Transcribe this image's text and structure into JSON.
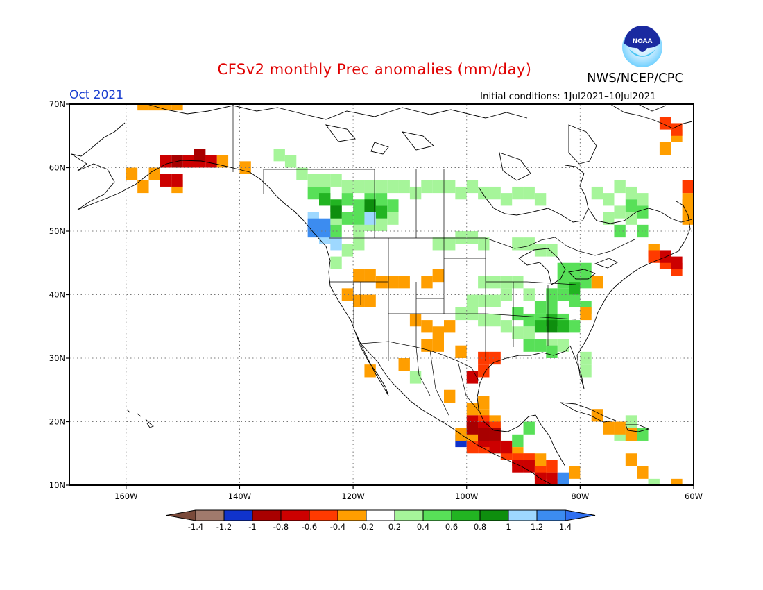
{
  "header": {
    "title": "CFSv2 monthly Prec anomalies (mm/day)",
    "agency": "NWS/NCEP/CPC",
    "logo_text": "NOAA",
    "month": "Oct 2021",
    "initial_conditions": "Initial conditions: 1Jul2021–10Jul2021"
  },
  "map": {
    "projection": "lat-lon",
    "lon_range": [
      -170,
      -60
    ],
    "lat_range": [
      10,
      70
    ],
    "lon_ticks": [
      {
        "lon": -160,
        "label": "160W"
      },
      {
        "lon": -140,
        "label": "140W"
      },
      {
        "lon": -120,
        "label": "120W"
      },
      {
        "lon": -100,
        "label": "100W"
      },
      {
        "lon": -80,
        "label": "80W"
      },
      {
        "lon": -60,
        "label": "60W"
      }
    ],
    "lat_ticks": [
      {
        "lat": 70,
        "label": "70N"
      },
      {
        "lat": 60,
        "label": "60N"
      },
      {
        "lat": 50,
        "label": "50N"
      },
      {
        "lat": 40,
        "label": "40N"
      },
      {
        "lat": 30,
        "label": "30N"
      },
      {
        "lat": 20,
        "label": "20N"
      },
      {
        "lat": 10,
        "label": "10N"
      }
    ],
    "grid": "dotted"
  },
  "colorbar": {
    "labels": [
      "-1.4",
      "-1.2",
      "-1",
      "-0.8",
      "-0.6",
      "-0.4",
      "-0.2",
      "0.2",
      "0.4",
      "0.6",
      "0.8",
      "1",
      "1.2",
      "1.4"
    ],
    "colors": [
      "#a07a6c",
      "#1033cc",
      "#a80000",
      "#cc0000",
      "#ff3a00",
      "#ff9e00",
      "#ffffff",
      "#a6f59a",
      "#58e058",
      "#22b422",
      "#0e8e0e",
      "#9ed8ff",
      "#3c8cf0"
    ],
    "under_color": "#7a4a3a",
    "over_color": "#2f6ff0"
  },
  "anomaly_regions": [
    {
      "color": "#ff9e00",
      "cells": [
        [
          -157,
          70
        ],
        [
          -155,
          70
        ],
        [
          -153,
          70
        ],
        [
          -151,
          70
        ],
        [
          -159,
          59
        ],
        [
          -155,
          59
        ],
        [
          -157,
          57
        ],
        [
          -151,
          57
        ],
        [
          -143,
          61
        ],
        [
          -139,
          60
        ]
      ]
    },
    {
      "color": "#cc0000",
      "cells": [
        [
          -153,
          61
        ],
        [
          -149,
          61
        ],
        [
          -147,
          61
        ],
        [
          -145,
          61
        ],
        [
          -151,
          58
        ],
        [
          -153,
          58
        ]
      ]
    },
    {
      "color": "#a80000",
      "cells": [
        [
          -151,
          61
        ],
        [
          -147,
          62
        ]
      ]
    },
    {
      "color": "#a6f59a",
      "cells": [
        [
          -133,
          62
        ],
        [
          -131,
          61
        ],
        [
          -129,
          59
        ],
        [
          -127,
          58
        ],
        [
          -125,
          58
        ],
        [
          -123,
          58
        ],
        [
          -121,
          57
        ],
        [
          -119,
          57
        ],
        [
          -117,
          57
        ],
        [
          -115,
          57
        ],
        [
          -113,
          57
        ],
        [
          -111,
          57
        ],
        [
          -109,
          56
        ],
        [
          -107,
          57
        ],
        [
          -105,
          57
        ],
        [
          -103,
          57
        ],
        [
          -101,
          56
        ],
        [
          -99,
          57
        ],
        [
          -97,
          56
        ],
        [
          -95,
          56
        ],
        [
          -93,
          55
        ],
        [
          -91,
          56
        ],
        [
          -89,
          56
        ],
        [
          -87,
          55
        ],
        [
          -123,
          52
        ],
        [
          -119,
          50
        ],
        [
          -117,
          51
        ],
        [
          -115,
          51
        ],
        [
          -113,
          52
        ],
        [
          -125,
          49
        ],
        [
          -121,
          47
        ],
        [
          -119,
          48
        ],
        [
          -123,
          45
        ],
        [
          -105,
          48
        ],
        [
          -103,
          48
        ],
        [
          -101,
          49
        ],
        [
          -99,
          49
        ],
        [
          -97,
          48
        ],
        [
          -91,
          48
        ],
        [
          -89,
          48
        ],
        [
          -87,
          47
        ],
        [
          -85,
          47
        ],
        [
          -77,
          56
        ],
        [
          -75,
          55
        ],
        [
          -73,
          57
        ],
        [
          -71,
          56
        ],
        [
          -69,
          55
        ],
        [
          -73,
          53
        ],
        [
          -71,
          52
        ],
        [
          -75,
          52
        ],
        [
          -97,
          42
        ],
        [
          -95,
          42
        ],
        [
          -93,
          42
        ],
        [
          -91,
          42
        ],
        [
          -99,
          39
        ],
        [
          -97,
          39
        ],
        [
          -95,
          39
        ],
        [
          -93,
          40
        ],
        [
          -89,
          40
        ],
        [
          -101,
          37
        ],
        [
          -99,
          37
        ],
        [
          -97,
          36
        ],
        [
          -95,
          36
        ],
        [
          -93,
          35
        ],
        [
          -91,
          34
        ],
        [
          -89,
          34
        ],
        [
          -87,
          32
        ],
        [
          -85,
          32
        ],
        [
          -83,
          32
        ],
        [
          -79,
          30
        ],
        [
          -79,
          28
        ],
        [
          -109,
          27
        ],
        [
          -71,
          20
        ],
        [
          -73,
          18
        ],
        [
          -67,
          10
        ]
      ]
    },
    {
      "color": "#58e058",
      "cells": [
        [
          -127,
          56
        ],
        [
          -125,
          56
        ],
        [
          -121,
          55
        ],
        [
          -119,
          54
        ],
        [
          -117,
          55
        ],
        [
          -115,
          55
        ],
        [
          -113,
          54
        ],
        [
          -121,
          52
        ],
        [
          -119,
          52
        ],
        [
          -123,
          50
        ],
        [
          -71,
          54
        ],
        [
          -69,
          53
        ],
        [
          -73,
          50
        ],
        [
          -69,
          50
        ],
        [
          -83,
          44
        ],
        [
          -81,
          44
        ],
        [
          -79,
          44
        ],
        [
          -83,
          42
        ],
        [
          -81,
          42
        ],
        [
          -79,
          42
        ],
        [
          -85,
          40
        ],
        [
          -83,
          40
        ],
        [
          -81,
          39
        ],
        [
          -79,
          38
        ],
        [
          -87,
          38
        ],
        [
          -85,
          38
        ],
        [
          -91,
          37
        ],
        [
          -89,
          36
        ],
        [
          -87,
          36
        ],
        [
          -85,
          36
        ],
        [
          -83,
          36
        ],
        [
          -81,
          35
        ],
        [
          -89,
          32
        ],
        [
          -87,
          32
        ],
        [
          -85,
          31
        ],
        [
          -71,
          18
        ],
        [
          -69,
          18
        ],
        [
          -95,
          16
        ],
        [
          -93,
          16
        ],
        [
          -91,
          17
        ],
        [
          -89,
          19
        ]
      ]
    },
    {
      "color": "#22b422",
      "cells": [
        [
          -125,
          55
        ],
        [
          -123,
          54
        ],
        [
          -117,
          53
        ],
        [
          -115,
          53
        ],
        [
          -85,
          36
        ],
        [
          -83,
          35
        ],
        [
          -87,
          35
        ],
        [
          -81,
          41
        ]
      ]
    },
    {
      "color": "#0e8e0e",
      "cells": [
        [
          -123,
          53
        ],
        [
          -117,
          54
        ],
        [
          -85,
          35
        ]
      ]
    },
    {
      "color": "#9ed8ff",
      "cells": [
        [
          -127,
          52
        ],
        [
          -117,
          52
        ],
        [
          -125,
          49
        ],
        [
          -123,
          48
        ]
      ]
    },
    {
      "color": "#3c8cf0",
      "cells": [
        [
          -127,
          51
        ],
        [
          -127,
          50
        ],
        [
          -125,
          51
        ],
        [
          -125,
          50
        ],
        [
          -95,
          19
        ],
        [
          -83,
          10
        ],
        [
          -83,
          11
        ]
      ]
    },
    {
      "color": "#1033cc",
      "cells": [
        [
          -101,
          17
        ]
      ]
    },
    {
      "color": "#ff9e00",
      "cells": [
        [
          -119,
          43
        ],
        [
          -117,
          43
        ],
        [
          -115,
          42
        ],
        [
          -113,
          42
        ],
        [
          -111,
          42
        ],
        [
          -107,
          42
        ],
        [
          -105,
          43
        ],
        [
          -121,
          40
        ],
        [
          -119,
          39
        ],
        [
          -117,
          39
        ],
        [
          -109,
          36
        ],
        [
          -107,
          35
        ],
        [
          -105,
          34
        ],
        [
          -103,
          35
        ],
        [
          -107,
          32
        ],
        [
          -105,
          32
        ],
        [
          -101,
          31
        ],
        [
          -117,
          28
        ],
        [
          -111,
          29
        ],
        [
          -103,
          24
        ],
        [
          -99,
          22
        ],
        [
          -97,
          21
        ],
        [
          -97,
          23
        ],
        [
          -97,
          19
        ],
        [
          -101,
          18
        ],
        [
          -99,
          18
        ],
        [
          -95,
          20
        ],
        [
          -91,
          15
        ],
        [
          -89,
          14
        ],
        [
          -87,
          14
        ],
        [
          -85,
          13
        ],
        [
          -81,
          12
        ],
        [
          -87,
          12
        ],
        [
          -77,
          21
        ],
        [
          -75,
          19
        ],
        [
          -73,
          19
        ],
        [
          -71,
          18
        ],
        [
          -65,
          63
        ],
        [
          -63,
          65
        ],
        [
          -67,
          47
        ],
        [
          -61,
          54
        ],
        [
          -61,
          52
        ],
        [
          -61,
          55
        ],
        [
          -77,
          42
        ],
        [
          -79,
          37
        ],
        [
          -71,
          14
        ],
        [
          -69,
          12
        ],
        [
          -63,
          10
        ]
      ]
    },
    {
      "color": "#ff3a00",
      "cells": [
        [
          -97,
          20
        ],
        [
          -95,
          19
        ],
        [
          -99,
          16
        ],
        [
          -97,
          16
        ],
        [
          -95,
          17
        ],
        [
          -93,
          15
        ],
        [
          -91,
          14
        ],
        [
          -89,
          14
        ],
        [
          -87,
          12
        ],
        [
          -85,
          13
        ],
        [
          -65,
          67
        ],
        [
          -63,
          66
        ],
        [
          -67,
          46
        ],
        [
          -65,
          45
        ],
        [
          -63,
          44
        ],
        [
          -97,
          30
        ],
        [
          -95,
          30
        ],
        [
          -97,
          28
        ],
        [
          -61,
          57
        ]
      ]
    },
    {
      "color": "#cc0000",
      "cells": [
        [
          -99,
          20
        ],
        [
          -97,
          19
        ],
        [
          -97,
          17
        ],
        [
          -95,
          16
        ],
        [
          -93,
          16
        ],
        [
          -91,
          13
        ],
        [
          -89,
          13
        ],
        [
          -87,
          11
        ],
        [
          -85,
          11
        ],
        [
          -65,
          46
        ],
        [
          -63,
          45
        ],
        [
          -99,
          27
        ]
      ]
    },
    {
      "color": "#a80000",
      "cells": [
        [
          -99,
          19
        ],
        [
          -97,
          18
        ],
        [
          -95,
          18
        ]
      ]
    }
  ]
}
